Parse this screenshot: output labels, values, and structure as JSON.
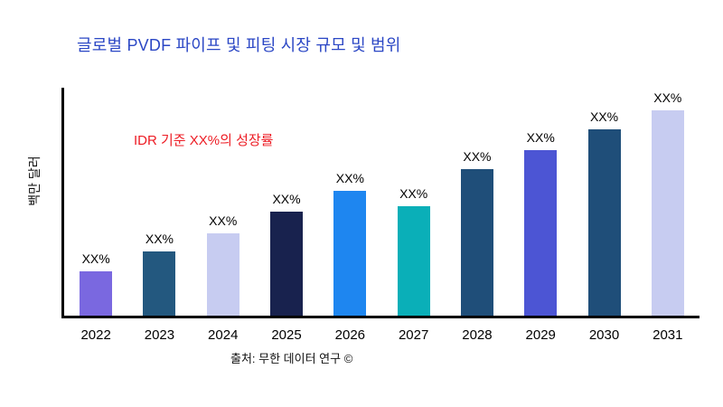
{
  "colors": {
    "title": "#2B47C5",
    "annotation": "#ED1C24",
    "axis": "#000000",
    "background": "#FFFFFF"
  },
  "header": {
    "title": "글로벌 PVDF 파이프 및 피팅 시장 규모 및 범위"
  },
  "annotation_text": "IDR 기준 XX%의 성장률",
  "footer": {
    "source": "출처: 무한 데이터 연구 ©"
  },
  "chart_data": {
    "type": "bar",
    "title": "글로벌 PVDF 파이프 및 피팅 시장 규모 및 범위",
    "xlabel": "",
    "ylabel": "백만 달러",
    "categories": [
      "2022",
      "2023",
      "2024",
      "2025",
      "2026",
      "2027",
      "2028",
      "2029",
      "2030",
      "2031"
    ],
    "bar_label": "XX%",
    "bar_labels": [
      "XX%",
      "XX%",
      "XX%",
      "XX%",
      "XX%",
      "XX%",
      "XX%",
      "XX%",
      "XX%",
      "XX%"
    ],
    "heights_pct": [
      19.6,
      28.2,
      36.1,
      45.5,
      54.9,
      48.2,
      64.3,
      72.5,
      81.6,
      90.2
    ],
    "colors": [
      "#7A68E0",
      "#23587F",
      "#C7CCF1",
      "#18224E",
      "#1E86F0",
      "#0AAFB8",
      "#1F4E79",
      "#4C55D4",
      "#1F4E79",
      "#C7CCF1"
    ],
    "annotation": "IDR 기준 XX%의 성장률",
    "source": "출처: 무한 데이터 연구 ©",
    "grid": false,
    "legend": "none",
    "axis_lines": [
      "left",
      "bottom"
    ]
  }
}
